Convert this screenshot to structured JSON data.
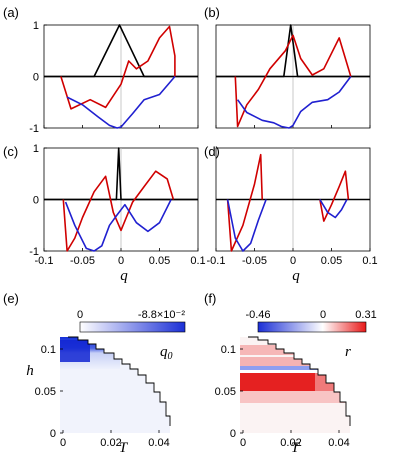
{
  "chart_data": [
    {
      "panel": "(a)",
      "type": "line",
      "xlim": [
        -0.1,
        0.1
      ],
      "ylim": [
        -1,
        1
      ],
      "y_ticks": [
        "1",
        "0",
        "-1"
      ],
      "x_ticks": [],
      "x_zero_line": true,
      "series": [
        {
          "color": "#000000",
          "x": [
            -0.1,
            -0.035,
            -0.002,
            0.03,
            0.1
          ],
          "y": [
            0,
            0,
            1,
            0,
            0
          ]
        },
        {
          "color": "#d00000",
          "x": [
            -0.078,
            -0.065,
            -0.04,
            -0.02,
            0.0,
            0.01,
            0.02,
            0.035,
            0.05,
            0.063,
            0.07,
            0.07
          ],
          "y": [
            0,
            -0.63,
            -0.45,
            -0.6,
            -0.15,
            0.3,
            0.15,
            0.3,
            0.75,
            0.97,
            0.4,
            0.0
          ]
        },
        {
          "color": "#2020d0",
          "x": [
            -0.07,
            -0.05,
            -0.03,
            -0.015,
            -0.005,
            0.0,
            0.015,
            0.03,
            0.05,
            0.07
          ],
          "y": [
            -0.4,
            -0.55,
            -0.78,
            -0.95,
            -1.0,
            -0.98,
            -0.72,
            -0.45,
            -0.35,
            0.0
          ]
        }
      ]
    },
    {
      "panel": "(b)",
      "type": "line",
      "xlim": [
        -0.1,
        0.1
      ],
      "ylim": [
        -1,
        1
      ],
      "y_ticks": [],
      "x_ticks": [],
      "x_zero_line": true,
      "series": [
        {
          "color": "#000000",
          "x": [
            -0.1,
            -0.012,
            -0.003,
            0.006,
            0.1
          ],
          "y": [
            0,
            0,
            1,
            0,
            0
          ]
        },
        {
          "color": "#d00000",
          "x": [
            -0.075,
            -0.072,
            -0.06,
            -0.045,
            -0.03,
            -0.01,
            0.0,
            0.01,
            0.025,
            0.04,
            0.06,
            0.075
          ],
          "y": [
            0,
            -0.97,
            -0.55,
            -0.25,
            0.15,
            0.5,
            0.8,
            0.35,
            0.03,
            0.15,
            0.75,
            0.0
          ]
        },
        {
          "color": "#2020d0",
          "x": [
            -0.072,
            -0.06,
            -0.04,
            -0.025,
            -0.015,
            -0.005,
            0.0,
            0.01,
            0.025,
            0.045,
            0.06,
            0.075
          ],
          "y": [
            -0.45,
            -0.7,
            -0.85,
            -0.9,
            -0.97,
            -1.0,
            -0.95,
            -0.68,
            -0.5,
            -0.45,
            -0.3,
            0.0
          ]
        }
      ]
    },
    {
      "panel": "(c)",
      "type": "line",
      "xlim": [
        -0.1,
        0.1
      ],
      "ylim": [
        -1,
        1
      ],
      "y_ticks": [
        "1",
        "0",
        "-1"
      ],
      "x_ticks": [],
      "x_zero_line": true,
      "series": [
        {
          "color": "#000000",
          "x": [
            -0.1,
            -0.006,
            -0.003,
            0.0,
            0.1
          ],
          "y": [
            0,
            0,
            1,
            0,
            0
          ]
        },
        {
          "color": "#d00000",
          "x": [
            -0.075,
            -0.07,
            -0.06,
            -0.05,
            -0.035,
            -0.02,
            -0.01,
            0.0,
            0.015,
            0.03,
            0.045,
            0.06,
            0.068
          ],
          "y": [
            0,
            -1.0,
            -0.75,
            -0.35,
            0.15,
            0.45,
            -0.25,
            -0.6,
            -0.05,
            0.25,
            0.55,
            0.4,
            0.0
          ]
        },
        {
          "color": "#2020d0",
          "x": [
            -0.072,
            -0.06,
            -0.045,
            -0.035,
            -0.025,
            -0.015,
            -0.005,
            0.005,
            0.02,
            0.035,
            0.05,
            0.065
          ],
          "y": [
            -0.05,
            -0.5,
            -0.95,
            -1.0,
            -0.9,
            -0.5,
            -0.3,
            -0.1,
            -0.45,
            -0.62,
            -0.45,
            0.0
          ]
        }
      ]
    },
    {
      "panel": "(d)",
      "type": "line",
      "xlim": [
        -0.1,
        0.1
      ],
      "ylim": [
        -1,
        1
      ],
      "y_ticks": [],
      "x_ticks": [
        "-0.1",
        "-0.05",
        "0",
        "0.05",
        "0.1"
      ],
      "x_zero_line": true,
      "series": [
        {
          "color": "#d00000",
          "x": [
            -0.085,
            -0.08,
            -0.065,
            -0.05,
            -0.042,
            -0.04
          ],
          "y": [
            0,
            -1.0,
            -0.5,
            0.3,
            0.87,
            0.0
          ]
        },
        {
          "color": "#2020d0",
          "x": [
            -0.085,
            -0.075,
            -0.065,
            -0.055,
            -0.045,
            -0.035
          ],
          "y": [
            0,
            -0.75,
            -1.0,
            -0.85,
            -0.4,
            0.0
          ]
        },
        {
          "color": "#d00000",
          "x": [
            0.035,
            0.04,
            0.05,
            0.06,
            0.068,
            0.072
          ],
          "y": [
            0,
            -0.42,
            -0.1,
            0.25,
            0.55,
            0.0
          ]
        },
        {
          "color": "#2020d0",
          "x": [
            0.035,
            0.045,
            0.055,
            0.063,
            0.07
          ],
          "y": [
            0,
            -0.25,
            -0.35,
            -0.2,
            0.0
          ]
        }
      ]
    },
    {
      "panel": "(e)",
      "type": "heatmap",
      "colorbar_ticks": [
        "0",
        "-8.8×10⁻²"
      ],
      "var_label": "q0",
      "x_ticks": [
        "0",
        "0.02",
        "0.04"
      ],
      "y_ticks": [
        "0.1",
        "0.05",
        "0"
      ]
    },
    {
      "panel": "(f)",
      "type": "heatmap",
      "colorbar_ticks": [
        "-0.46",
        "0",
        "0.31"
      ],
      "var_label": "r",
      "x_ticks": [
        "0",
        "0.02",
        "0.04"
      ],
      "y_ticks": [
        "0.1",
        "0.05",
        "0"
      ]
    }
  ],
  "axis_labels": {
    "q": "q",
    "h": "h",
    "T": "T"
  }
}
